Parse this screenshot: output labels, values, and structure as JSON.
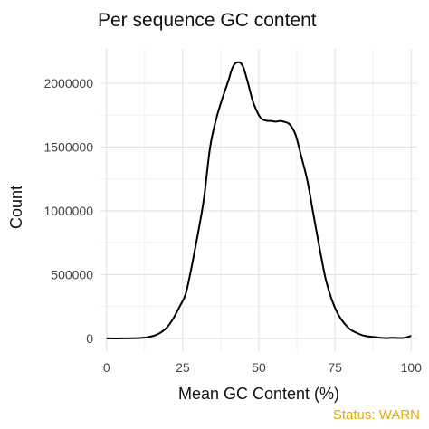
{
  "chart_data": {
    "type": "line",
    "title": "Per sequence GC content",
    "xlabel": "Mean GC Content (%)",
    "ylabel": "Count",
    "xlim": [
      -2,
      102
    ],
    "ylim": [
      -100000,
      2270000
    ],
    "x_ticks": [
      0,
      25,
      50,
      75,
      100
    ],
    "x_tick_labels": [
      "0",
      "25",
      "50",
      "75",
      "100"
    ],
    "y_ticks": [
      0,
      500000,
      1000000,
      1500000,
      2000000
    ],
    "y_tick_labels": [
      "0",
      "500000",
      "1000000",
      "1500000",
      "2000000"
    ],
    "grid": true,
    "legend": "none",
    "line_color": "#000000",
    "series": [
      {
        "x": [
          0,
          5,
          10,
          12,
          14,
          16,
          18,
          20,
          22,
          24,
          26,
          28,
          30,
          32,
          34,
          36,
          38,
          40,
          41,
          42,
          43,
          44,
          45,
          46,
          47,
          48,
          49,
          50,
          51,
          52,
          53,
          54,
          55,
          56,
          57,
          58,
          60,
          62,
          64,
          66,
          68,
          70,
          72,
          74,
          76,
          78,
          80,
          82,
          84,
          86,
          88,
          90,
          92,
          94,
          96,
          98,
          100
        ],
        "y": [
          0,
          0,
          2000,
          5000,
          12000,
          25000,
          50000,
          90000,
          160000,
          250000,
          350000,
          570000,
          820000,
          1100000,
          1500000,
          1720000,
          1880000,
          2020000,
          2100000,
          2150000,
          2165000,
          2160000,
          2120000,
          2040000,
          1950000,
          1860000,
          1800000,
          1750000,
          1720000,
          1710000,
          1705000,
          1705000,
          1700000,
          1700000,
          1705000,
          1700000,
          1680000,
          1600000,
          1420000,
          1230000,
          960000,
          700000,
          460000,
          300000,
          190000,
          120000,
          70000,
          45000,
          25000,
          15000,
          10000,
          5000,
          2000,
          5000,
          3000,
          5000,
          20000
        ]
      }
    ]
  },
  "status": {
    "text": "Status: WARN",
    "color": "#E6AC00"
  }
}
